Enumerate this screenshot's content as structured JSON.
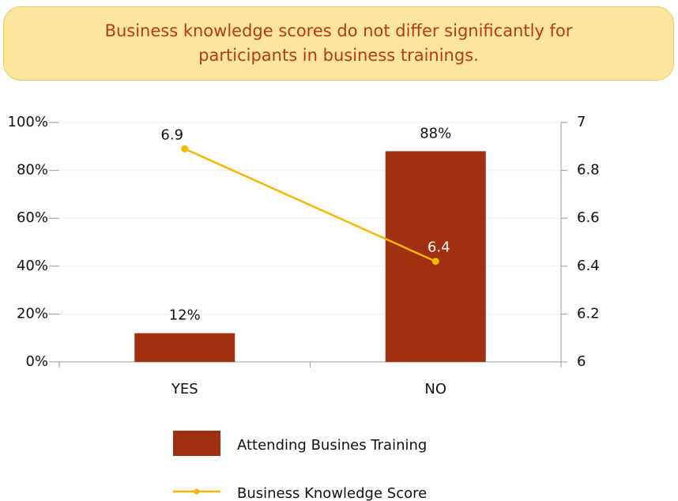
{
  "chart_data": {
    "type": "bar",
    "title": "Business knowledge scores do not differ significantly for participants in business trainings.",
    "categories": [
      "YES",
      "NO"
    ],
    "series": [
      {
        "name": "Attending Busines Training",
        "type": "bar",
        "color": "#a0300f",
        "values": [
          12,
          88
        ],
        "value_labels": [
          "12%",
          "88%"
        ]
      },
      {
        "name": "Business Knowledge Score",
        "type": "line",
        "axis": "y2",
        "color": "#f5b800",
        "values": [
          6.89,
          6.42
        ],
        "value_labels": [
          "6.9",
          "6.4"
        ]
      }
    ],
    "ylim": [
      0,
      100
    ],
    "yticks": [
      {
        "value": 0,
        "label": "0%"
      },
      {
        "value": 20,
        "label": "20%"
      },
      {
        "value": 40,
        "label": "40%"
      },
      {
        "value": 60,
        "label": "60%"
      },
      {
        "value": 80,
        "label": "80%"
      },
      {
        "value": 100,
        "label": "100%"
      }
    ],
    "y2lim": [
      6,
      7
    ],
    "y2ticks": [
      6,
      6.2,
      6.4,
      6.6,
      6.8,
      7
    ],
    "grid": true,
    "legend": "bottom"
  }
}
